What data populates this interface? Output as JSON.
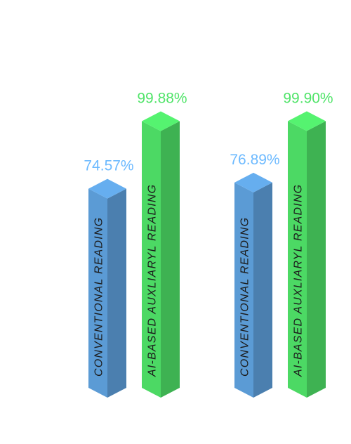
{
  "chart_data": {
    "type": "bar",
    "categories": [
      null,
      null
    ],
    "series": [
      {
        "name": "CONVENTIONAL READING",
        "color": "#5b9bd5",
        "values": [
          74.57,
          76.89
        ],
        "value_labels": [
          "74.57%",
          "76.89%"
        ]
      },
      {
        "name": "AI-BASED AUXLIARYL READING",
        "color": "#4cd964",
        "values": [
          99.88,
          99.9
        ],
        "value_labels": [
          "99.88%",
          "99.90%"
        ]
      }
    ]
  }
}
